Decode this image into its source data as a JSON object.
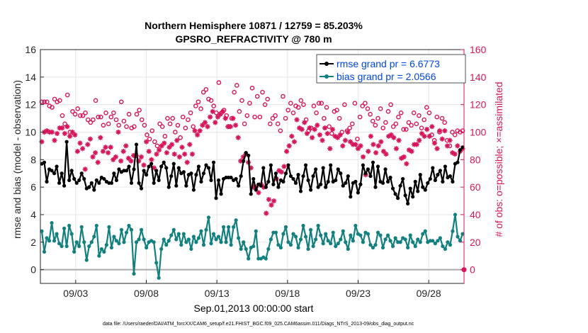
{
  "chart_data": {
    "type": "line",
    "title": "Northern Hemisphere 10871 / 12759 = 85.203%",
    "subtitle": "GPSRO_REFRACTIVITY @ 780 m",
    "xlabel": "Sep.01,2013 00:00:00 start",
    "ylabel_left": "rmse and bias (model - observation)",
    "ylabel_right": "# of obs: o=possible; ×=assimilated",
    "footer": "data file: /Users/raeder/DAI/ATM_forcXX/CAM6_setup/f.e21.FHIST_BGC.f09_025.CAM6assim.011/Diags_NTrS_2013-09/obs_diag_output.nc",
    "xlim": [
      0.5,
      30.5
    ],
    "x_ticks": [
      3,
      8,
      13,
      18,
      23,
      28
    ],
    "x_tick_labels": [
      "09/03",
      "09/08",
      "09/13",
      "09/18",
      "09/23",
      "09/28"
    ],
    "ylim_left": [
      -1,
      16
    ],
    "y_ticks_left": [
      0,
      2,
      4,
      6,
      8,
      10,
      12,
      14,
      16
    ],
    "ylim_right": [
      -10,
      160
    ],
    "y_ticks_right": [
      0,
      20,
      40,
      60,
      80,
      100,
      120,
      140,
      160
    ],
    "grid": true,
    "legend_position": "top-right",
    "colors": {
      "rmse": "#000000",
      "bias": "#138080",
      "counts": "#d6155c",
      "legend_text": "#0047e0",
      "zero_line": "#aaaaaa"
    },
    "series": [
      {
        "name": "rmse grand pr = 6.6773",
        "axis": "left",
        "values": [
          7.7,
          7.8,
          6.4,
          7.3,
          7.2,
          7.0,
          7.5,
          6.3,
          7.0,
          6.1,
          9.3,
          6.5,
          7.2,
          6.6,
          6.3,
          6.5,
          7.0,
          6.6,
          5.9,
          6.0,
          6.3,
          5.8,
          6.5,
          6.3,
          6.7,
          6.6,
          6.4,
          6.3,
          6.3,
          7.0,
          6.5,
          7.3,
          7.1,
          7.2,
          7.2,
          7.5,
          6.3,
          7.3,
          9.1,
          6.3,
          5.9,
          7.2,
          6.9,
          7.5,
          7.7,
          6.3,
          7.2,
          6.5,
          7.5,
          7.8,
          7.4,
          6.0,
          6.8,
          7.7,
          6.1,
          7.4,
          7.0,
          7.1,
          6.1,
          6.9,
          7.0,
          5.8,
          6.9,
          7.5,
          6.4,
          7.0,
          7.6,
          7.4,
          6.5,
          7.8,
          5.2,
          6.5,
          5.5,
          6.6,
          6.7,
          6.7,
          6.7,
          6.5,
          6.6,
          6.1,
          6.8,
          7.9,
          8.5,
          8.3,
          5.5,
          6.6,
          5.8,
          6.2,
          6.1,
          7.4,
          6.0,
          6.4,
          7.6,
          6.2,
          7.0,
          6.0,
          6.5,
          6.4,
          7.0,
          7.6,
          6.8,
          6.6,
          6.3,
          6.9,
          5.7,
          6.8,
          7.6,
          6.5,
          5.8,
          6.8,
          7.3,
          6.0,
          6.2,
          7.4,
          6.0,
          6.4,
          7.6,
          6.4,
          6.5,
          7.3,
          7.0,
          6.1,
          6.3,
          6.8,
          5.3,
          6.3,
          6.4,
          5.6,
          6.2,
          7.6,
          7.0,
          7.3,
          6.8,
          7.8,
          6.0,
          7.5,
          6.4,
          6.3,
          7.3,
          6.4,
          6.7,
          5.9,
          5.5,
          5.2,
          6.1,
          6.6,
          5.4,
          4.8,
          5.9,
          5.3,
          6.4,
          5.7,
          6.9,
          6.0,
          5.8,
          6.3,
          6.6,
          7.4,
          6.5,
          6.9,
          7.2,
          6.4,
          7.5,
          6.7,
          6.8,
          6.4,
          7.7,
          7.8,
          8.7,
          8.9
        ]
      },
      {
        "name": "bias grand pr = 2.0566",
        "axis": "left",
        "values": [
          2.8,
          1.3,
          2.3,
          2.1,
          3.4,
          2.1,
          2.6,
          1.9,
          1.7,
          3.0,
          1.7,
          3.2,
          2.6,
          1.3,
          2.0,
          1.7,
          3.1,
          2.0,
          0.7,
          1.7,
          2.0,
          2.4,
          3.2,
          1.0,
          1.5,
          1.3,
          1.8,
          3.1,
          1.6,
          2.4,
          2.1,
          1.9,
          2.9,
          2.0,
          2.7,
          3.2,
          2.9,
          -0.3,
          2.0,
          2.2,
          2.9,
          2.2,
          1.6,
          2.0,
          2.1,
          2.0,
          0.5,
          -0.6,
          1.5,
          2.2,
          1.8,
          2.1,
          2.5,
          2.9,
          2.2,
          2.6,
          1.8,
          2.6,
          2.0,
          2.2,
          1.5,
          2.4,
          2.0,
          2.3,
          2.8,
          1.8,
          2.9,
          3.8,
          1.9,
          2.6,
          2.2,
          2.4,
          2.0,
          3.1,
          2.0,
          3.1,
          1.8,
          3.1,
          3.6,
          2.3,
          1.5,
          2.0,
          1.5,
          0.8,
          1.6,
          1.7,
          2.8,
          0.8,
          0.8,
          0.9,
          0.8,
          1.5,
          2.2,
          2.7,
          2.7,
          1.8,
          1.6,
          2.6,
          3.1,
          2.0,
          1.8,
          2.6,
          2.4,
          1.6,
          2.2,
          3.2,
          2.4,
          1.5,
          2.9,
          1.7,
          2.2,
          3.2,
          2.5,
          1.9,
          2.6,
          2.1,
          1.9,
          2.7,
          1.7,
          1.9,
          2.2,
          2.8,
          2.0,
          1.5,
          2.5,
          2.1,
          3.2,
          2.6,
          2.5,
          2.0,
          2.7,
          2.6,
          1.8,
          1.6,
          1.8,
          2.7,
          2.5,
          1.6,
          2.2,
          2.5,
          2.1,
          1.7,
          2.3,
          2.0,
          2.0,
          2.3,
          2.2,
          1.6,
          2.5,
          2.0,
          1.7,
          2.2,
          2.0,
          2.6,
          2.8,
          2.0,
          2.1,
          2.1,
          1.9,
          2.1,
          2.3,
          1.7,
          1.5,
          2.0,
          1.8,
          2.8,
          4.0,
          2.4,
          2.1,
          2.6
        ]
      },
      {
        "name": "possible",
        "axis": "right",
        "marker": "o",
        "values": [
          122,
          122,
          122,
          119,
          118,
          124,
          122,
          123,
          112,
          106,
          127,
          100,
          115,
          113,
          117,
          112,
          112,
          114,
          109,
          107,
          109,
          123,
          111,
          111,
          105,
          114,
          106,
          111,
          114,
          109,
          105,
          122,
          108,
          104,
          113,
          103,
          104,
          113,
          116,
          109,
          105,
          98,
          95,
          101,
          93,
          90,
          106,
          104,
          97,
          110,
          106,
          110,
          100,
          105,
          96,
          111,
          103,
          109,
          114,
          104,
          119,
          122,
          117,
          129,
          131,
          124,
          123,
          119,
          114,
          136,
          114,
          116,
          112,
          104,
          110,
          129,
          134,
          115,
          123,
          106,
          112,
          121,
          132,
          111,
          126,
          111,
          129,
          120,
          124,
          106,
          110,
          112,
          106,
          101,
          126,
          110,
          116,
          121,
          114,
          119,
          118,
          123,
          120,
          109,
          101,
          103,
          119,
          114,
          121,
          121,
          110,
          118,
          104,
          99,
          115,
          116,
          110,
          100,
          120,
          101,
          103,
          106,
          121,
          95,
          111,
          119,
          121,
          117,
          113,
          108,
          105,
          110,
          117,
          103,
          107,
          115,
          120,
          104,
          106,
          111,
          114,
          102,
          102,
          107,
          105,
          114,
          106,
          112,
          103,
          109,
          118,
          114,
          98,
          94,
          111,
          100,
          110,
          107,
          94,
          90,
          100,
          98,
          101,
          100,
          101
        ]
      },
      {
        "name": "assimilated",
        "axis": "right",
        "marker": "*",
        "values": [
          93,
          100,
          101,
          100,
          100,
          94,
          99,
          103,
          103,
          99,
          104,
          97,
          100,
          98,
          86,
          92,
          88,
          73,
          91,
          95,
          82,
          85,
          78,
          96,
          86,
          89,
          85,
          89,
          80,
          82,
          100,
          79,
          86,
          90,
          81,
          79,
          83,
          83,
          79,
          82,
          76,
          93,
          86,
          80,
          74,
          84,
          87,
          90,
          92,
          85,
          89,
          91,
          84,
          94,
          82,
          89,
          84,
          78,
          91,
          84,
          101,
          98,
          101,
          105,
          107,
          104,
          111,
          115,
          107,
          111,
          113,
          115,
          110,
          104,
          104,
          110,
          105,
          96,
          79,
          82,
          84,
          78,
          74,
          60,
          60,
          56,
          62,
          60,
          41,
          51,
          47,
          50,
          66,
          72,
          71,
          75,
          86,
          90,
          97,
          93,
          109,
          103,
          102,
          107,
          99,
          103,
          96,
          102,
          105,
          98,
          94,
          103,
          99,
          88,
          102,
          97,
          96,
          98,
          90,
          94,
          100,
          93,
          91,
          91,
          88,
          90,
          82,
          69,
          86,
          97,
          91,
          85,
          90,
          93,
          86,
          84,
          97,
          98,
          96,
          88,
          94,
          81,
          82,
          77,
          87,
          86,
          91,
          91,
          94,
          99,
          97,
          102,
          97,
          104,
          92,
          88,
          101,
          95,
          101,
          90,
          94,
          85,
          84,
          90,
          86,
          88
        ]
      }
    ],
    "zero_marker_right": 0
  }
}
